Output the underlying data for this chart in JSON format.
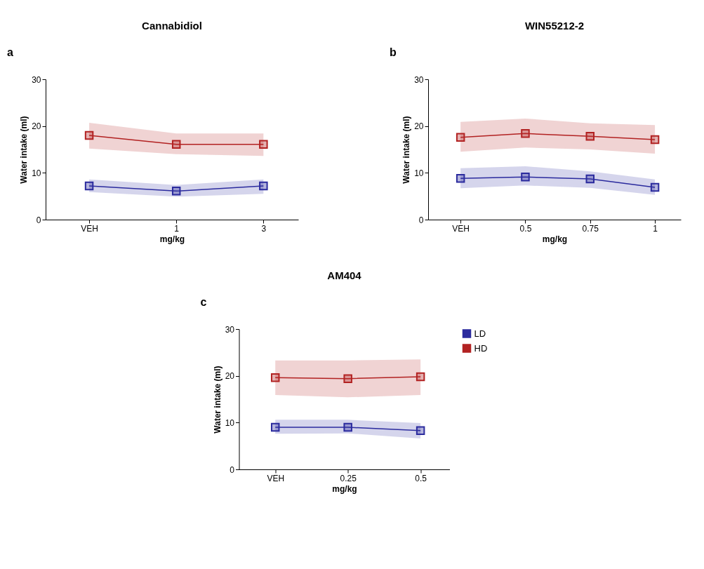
{
  "chart_data": [
    {
      "type": "line",
      "title": "Cannabidiol",
      "annotations": [
        "a"
      ],
      "xlabel": "mg/kg",
      "ylabel": "Water intake (ml)",
      "categories": [
        "VEH",
        "1",
        "3"
      ],
      "ylim": [
        0,
        30
      ],
      "yticks": [
        0,
        10,
        20,
        30
      ],
      "grid": false,
      "marker": "square",
      "line_style": "solid",
      "series": [
        {
          "color": "#2b2b9e",
          "values": [
            7.2,
            6.1,
            7.2
          ],
          "lower": [
            5.9,
            4.9,
            5.5
          ],
          "upper": [
            8.6,
            7.4,
            8.6
          ]
        },
        {
          "color": "#b22222",
          "values": [
            18.0,
            16.1,
            16.1
          ],
          "lower": [
            15.2,
            14.0,
            13.6
          ],
          "upper": [
            20.7,
            18.4,
            18.4
          ]
        }
      ]
    },
    {
      "type": "line",
      "title": "WIN55212-2",
      "annotations": [
        "b"
      ],
      "xlabel": "mg/kg",
      "ylabel": "Water intake (ml)",
      "categories": [
        "VEH",
        "0.5",
        "0.75",
        "1"
      ],
      "ylim": [
        0,
        30
      ],
      "yticks": [
        0,
        10,
        20,
        30
      ],
      "grid": false,
      "marker": "square",
      "line_style": "solid",
      "series": [
        {
          "color": "#2b2b9e",
          "values": [
            8.8,
            9.1,
            8.7,
            6.9
          ],
          "lower": [
            6.7,
            7.3,
            6.8,
            5.3
          ],
          "upper": [
            11.0,
            11.4,
            10.3,
            8.6
          ]
        },
        {
          "color": "#b22222",
          "values": [
            17.6,
            18.4,
            17.8,
            17.1
          ],
          "lower": [
            14.5,
            15.4,
            15.0,
            14.1
          ],
          "upper": [
            20.9,
            21.6,
            20.6,
            20.2
          ]
        }
      ]
    },
    {
      "type": "line",
      "title": "AM404",
      "annotations": [
        "c"
      ],
      "xlabel": "mg/kg",
      "ylabel": "Water intake (ml)",
      "categories": [
        "VEH",
        "0.25",
        "0.5"
      ],
      "ylim": [
        0,
        30
      ],
      "yticks": [
        0,
        10,
        20,
        30
      ],
      "grid": false,
      "marker": "square",
      "line_style": "solid",
      "legend": "right",
      "series": [
        {
          "name": "LD",
          "color": "#2b2b9e",
          "values": [
            9.0,
            9.0,
            8.3
          ],
          "lower": [
            7.6,
            7.7,
            6.6
          ],
          "upper": [
            10.6,
            10.6,
            9.9
          ]
        },
        {
          "name": "HD",
          "color": "#b22222",
          "values": [
            19.6,
            19.4,
            19.8
          ],
          "lower": [
            15.9,
            15.4,
            15.9
          ],
          "upper": [
            23.3,
            23.3,
            23.5
          ]
        }
      ]
    }
  ]
}
